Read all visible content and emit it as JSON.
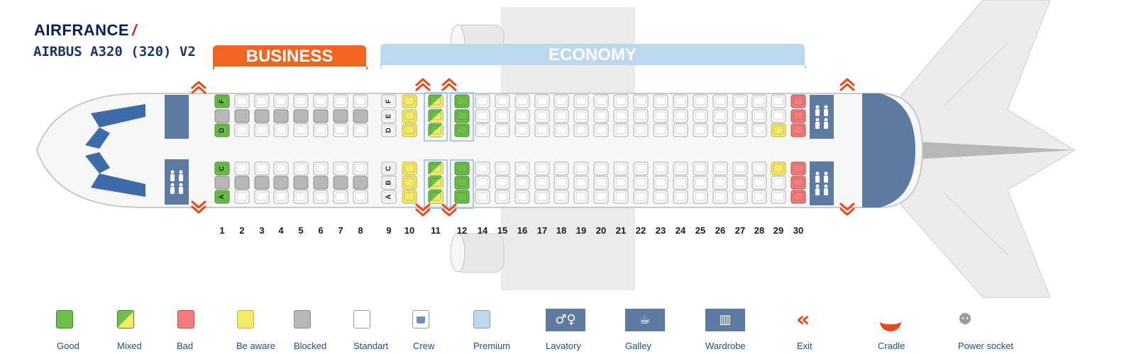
{
  "header": {
    "brand": "AIRFRANCE",
    "model": "AIRBUS A320 (320) V2"
  },
  "cabins": {
    "business": "BUSINESS",
    "economy": "ECONOMY"
  },
  "colors": {
    "good": "#6cc04a",
    "mixed": "#c9e04c",
    "bad": "#f27d7d",
    "aware": "#f4ea6a",
    "blocked": "#b8b8b8",
    "standard": "#ffffff",
    "accent_exit": "#e8481a",
    "business": "#f26422",
    "economy": "#bcd8ef",
    "fixture": "#5d7aa3"
  },
  "rows": [
    "1",
    "2",
    "3",
    "4",
    "5",
    "6",
    "7",
    "8",
    "9",
    "10",
    "11",
    "12",
    "14",
    "15",
    "16",
    "17",
    "18",
    "19",
    "20",
    "21",
    "22",
    "23",
    "24",
    "25",
    "26",
    "27",
    "28",
    "29",
    "30"
  ],
  "row9_letters": {
    "top": [
      "F",
      "E",
      "D"
    ],
    "bottom": [
      "C",
      "B",
      "A"
    ]
  },
  "row1_letters": {
    "top": [
      "F",
      "",
      "D"
    ],
    "bottom": [
      "C",
      "",
      "A"
    ]
  },
  "legend": [
    {
      "key": "good",
      "label": "Good"
    },
    {
      "key": "mixed",
      "label": "Mixed"
    },
    {
      "key": "bad",
      "label": "Bad"
    },
    {
      "key": "aware",
      "label": "Be aware"
    },
    {
      "key": "blocked",
      "label": "Blocked"
    },
    {
      "key": "standard",
      "label": "Standart"
    },
    {
      "key": "crew",
      "label": "Crew"
    },
    {
      "key": "premium",
      "label": "Premium"
    },
    {
      "key": "lavatory",
      "label": "Lavatory"
    },
    {
      "key": "galley",
      "label": "Galley"
    },
    {
      "key": "wardrobe",
      "label": "Wardrobe"
    },
    {
      "key": "exit",
      "label": "Exit"
    },
    {
      "key": "cradle",
      "label": "Cradle"
    },
    {
      "key": "power",
      "label": "Power socket"
    }
  ],
  "icons": {
    "lavatory": "lavatory-icon",
    "galley": "galley-icon",
    "wardrobe": "wardrobe-icon",
    "exit": "exit-arrow-icon",
    "cradle": "cradle-icon",
    "power": "power-socket-icon"
  }
}
